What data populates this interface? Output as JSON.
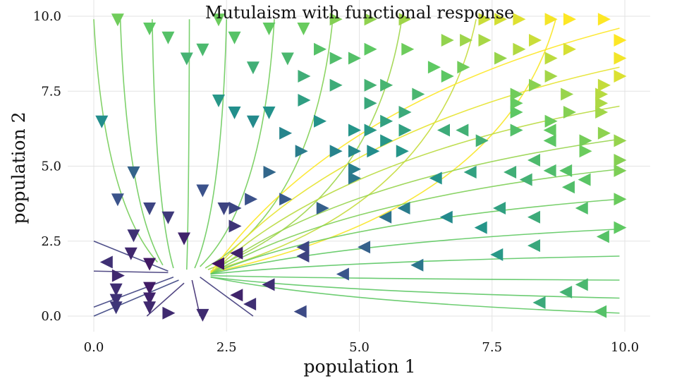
{
  "chart_data": {
    "type": "streamplot",
    "title": "Mutulaism with functional response",
    "xlabel": "population 1",
    "ylabel": "population 2",
    "xlim": [
      0,
      10
    ],
    "ylim": [
      -0.6,
      10.3
    ],
    "x_ticks": [
      0.0,
      2.5,
      5.0,
      7.5,
      10.0
    ],
    "y_ticks": [
      0.0,
      2.5,
      5.0,
      7.5,
      10.0
    ],
    "x_tick_labels": [
      "0.0",
      "2.5",
      "5.0",
      "7.5",
      "10.0"
    ],
    "y_tick_labels": [
      "0.0",
      "2.5",
      "5.0",
      "7.5",
      "10.0"
    ],
    "grid": true,
    "colormap": "viridis",
    "colorscale": [
      "#440154",
      "#3b528b",
      "#21918c",
      "#5ec962",
      "#fde725"
    ],
    "converge_point": [
      1.8,
      1.45
    ],
    "streamlines": [
      {
        "start": [
          0.0,
          9.9
        ],
        "end": [
          1.2,
          1.8
        ]
      },
      {
        "start": [
          0.5,
          9.9
        ],
        "end": [
          1.3,
          1.7
        ]
      },
      {
        "start": [
          1.1,
          9.9
        ],
        "end": [
          1.5,
          1.6
        ]
      },
      {
        "start": [
          1.8,
          9.9
        ],
        "end": [
          1.75,
          1.55
        ]
      },
      {
        "start": [
          2.5,
          9.9
        ],
        "end": [
          1.9,
          1.6
        ]
      },
      {
        "start": [
          3.4,
          9.9
        ],
        "end": [
          2.0,
          1.65
        ]
      },
      {
        "start": [
          4.5,
          9.9
        ],
        "end": [
          2.1,
          1.6
        ]
      },
      {
        "start": [
          5.8,
          9.9
        ],
        "end": [
          2.15,
          1.55
        ]
      },
      {
        "start": [
          7.2,
          9.9
        ],
        "end": [
          2.2,
          1.5
        ]
      },
      {
        "start": [
          8.7,
          9.9
        ],
        "end": [
          2.2,
          1.45
        ]
      },
      {
        "start": [
          9.9,
          9.6
        ],
        "end": [
          2.2,
          1.45
        ]
      },
      {
        "start": [
          9.9,
          8.3
        ],
        "end": [
          2.2,
          1.4
        ]
      },
      {
        "start": [
          9.9,
          7.0
        ],
        "end": [
          2.2,
          1.4
        ]
      },
      {
        "start": [
          9.9,
          5.9
        ],
        "end": [
          2.2,
          1.4
        ]
      },
      {
        "start": [
          9.9,
          4.9
        ],
        "end": [
          2.2,
          1.4
        ]
      },
      {
        "start": [
          9.9,
          3.9
        ],
        "end": [
          2.2,
          1.4
        ]
      },
      {
        "start": [
          9.9,
          2.9
        ],
        "end": [
          2.2,
          1.4
        ]
      },
      {
        "start": [
          9.9,
          2.0
        ],
        "end": [
          2.2,
          1.4
        ]
      },
      {
        "start": [
          9.9,
          1.2
        ],
        "end": [
          2.2,
          1.35
        ]
      },
      {
        "start": [
          9.9,
          0.6
        ],
        "end": [
          2.2,
          1.3
        ]
      },
      {
        "start": [
          9.9,
          0.1
        ],
        "end": [
          2.2,
          1.3
        ]
      },
      {
        "start": [
          0.0,
          2.5
        ],
        "end": [
          1.4,
          1.5
        ]
      },
      {
        "start": [
          0.0,
          1.5
        ],
        "end": [
          1.4,
          1.45
        ]
      },
      {
        "start": [
          0.0,
          0.3
        ],
        "end": [
          1.5,
          1.3
        ]
      },
      {
        "start": [
          0.0,
          0.0
        ],
        "end": [
          1.6,
          1.2
        ]
      },
      {
        "start": [
          1.0,
          0.0
        ],
        "end": [
          1.7,
          1.1
        ]
      },
      {
        "start": [
          2.0,
          0.0
        ],
        "end": [
          1.85,
          1.2
        ]
      },
      {
        "start": [
          3.0,
          0.0
        ],
        "end": [
          2.0,
          1.3
        ]
      }
    ],
    "arrows": [
      {
        "x": 0.25,
        "y": 1.8,
        "dir": "left"
      },
      {
        "x": 0.45,
        "y": 1.35,
        "dir": "right"
      },
      {
        "x": 0.42,
        "y": 0.9,
        "dir": "down"
      },
      {
        "x": 0.42,
        "y": 0.55,
        "dir": "down"
      },
      {
        "x": 0.42,
        "y": 0.3,
        "dir": "down"
      },
      {
        "x": 1.05,
        "y": 0.95,
        "dir": "down"
      },
      {
        "x": 1.05,
        "y": 0.6,
        "dir": "down"
      },
      {
        "x": 1.05,
        "y": 0.3,
        "dir": "down"
      },
      {
        "x": 1.4,
        "y": 0.1,
        "dir": "right"
      },
      {
        "x": 2.05,
        "y": 0.05,
        "dir": "down"
      },
      {
        "x": 0.7,
        "y": 2.1,
        "dir": "down"
      },
      {
        "x": 1.05,
        "y": 1.75,
        "dir": "down"
      },
      {
        "x": 0.75,
        "y": 2.7,
        "dir": "down"
      },
      {
        "x": 0.45,
        "y": 3.9,
        "dir": "down"
      },
      {
        "x": 1.05,
        "y": 3.6,
        "dir": "down"
      },
      {
        "x": 1.4,
        "y": 3.3,
        "dir": "down"
      },
      {
        "x": 1.7,
        "y": 2.6,
        "dir": "down"
      },
      {
        "x": 2.05,
        "y": 4.2,
        "dir": "down"
      },
      {
        "x": 2.45,
        "y": 3.6,
        "dir": "down"
      },
      {
        "x": 0.15,
        "y": 6.5,
        "dir": "down"
      },
      {
        "x": 0.75,
        "y": 4.8,
        "dir": "down"
      },
      {
        "x": 2.35,
        "y": 1.75,
        "dir": "left"
      },
      {
        "x": 2.7,
        "y": 2.1,
        "dir": "left"
      },
      {
        "x": 2.7,
        "y": 0.7,
        "dir": "left"
      },
      {
        "x": 2.95,
        "y": 0.4,
        "dir": "left"
      },
      {
        "x": 3.3,
        "y": 1.05,
        "dir": "left"
      },
      {
        "x": 3.9,
        "y": 0.15,
        "dir": "left"
      },
      {
        "x": 3.95,
        "y": 2.3,
        "dir": "left"
      },
      {
        "x": 3.95,
        "y": 2.0,
        "dir": "left"
      },
      {
        "x": 4.7,
        "y": 1.4,
        "dir": "left"
      },
      {
        "x": 5.1,
        "y": 2.3,
        "dir": "left"
      },
      {
        "x": 6.1,
        "y": 1.7,
        "dir": "left"
      },
      {
        "x": 7.6,
        "y": 2.05,
        "dir": "left"
      },
      {
        "x": 8.3,
        "y": 2.35,
        "dir": "left"
      },
      {
        "x": 8.9,
        "y": 0.8,
        "dir": "left"
      },
      {
        "x": 9.2,
        "y": 1.05,
        "dir": "left"
      },
      {
        "x": 8.4,
        "y": 0.45,
        "dir": "left"
      },
      {
        "x": 9.55,
        "y": 0.15,
        "dir": "left"
      },
      {
        "x": 2.65,
        "y": 3.0,
        "dir": "right"
      },
      {
        "x": 2.65,
        "y": 3.6,
        "dir": "right"
      },
      {
        "x": 2.95,
        "y": 3.9,
        "dir": "right"
      },
      {
        "x": 3.6,
        "y": 3.9,
        "dir": "right"
      },
      {
        "x": 4.3,
        "y": 3.6,
        "dir": "right"
      },
      {
        "x": 5.5,
        "y": 3.3,
        "dir": "left"
      },
      {
        "x": 5.85,
        "y": 3.6,
        "dir": "left"
      },
      {
        "x": 6.65,
        "y": 3.3,
        "dir": "left"
      },
      {
        "x": 7.3,
        "y": 2.95,
        "dir": "left"
      },
      {
        "x": 7.65,
        "y": 3.6,
        "dir": "left"
      },
      {
        "x": 8.3,
        "y": 3.3,
        "dir": "left"
      },
      {
        "x": 9.2,
        "y": 3.6,
        "dir": "left"
      },
      {
        "x": 9.6,
        "y": 2.65,
        "dir": "left"
      },
      {
        "x": 9.9,
        "y": 2.95,
        "dir": "right"
      },
      {
        "x": 9.9,
        "y": 3.9,
        "dir": "right"
      },
      {
        "x": 3.3,
        "y": 4.8,
        "dir": "right"
      },
      {
        "x": 3.9,
        "y": 5.5,
        "dir": "right"
      },
      {
        "x": 4.9,
        "y": 4.6,
        "dir": "right"
      },
      {
        "x": 4.9,
        "y": 4.9,
        "dir": "right"
      },
      {
        "x": 4.55,
        "y": 5.5,
        "dir": "right"
      },
      {
        "x": 4.9,
        "y": 5.5,
        "dir": "right"
      },
      {
        "x": 5.25,
        "y": 5.5,
        "dir": "right"
      },
      {
        "x": 5.8,
        "y": 5.5,
        "dir": "right"
      },
      {
        "x": 5.5,
        "y": 5.85,
        "dir": "right"
      },
      {
        "x": 4.9,
        "y": 6.2,
        "dir": "right"
      },
      {
        "x": 5.2,
        "y": 6.2,
        "dir": "right"
      },
      {
        "x": 5.5,
        "y": 6.5,
        "dir": "right"
      },
      {
        "x": 5.85,
        "y": 6.2,
        "dir": "right"
      },
      {
        "x": 5.85,
        "y": 6.8,
        "dir": "right"
      },
      {
        "x": 6.45,
        "y": 4.6,
        "dir": "left"
      },
      {
        "x": 7.1,
        "y": 4.8,
        "dir": "left"
      },
      {
        "x": 7.3,
        "y": 5.85,
        "dir": "right"
      },
      {
        "x": 6.6,
        "y": 6.2,
        "dir": "left"
      },
      {
        "x": 6.95,
        "y": 6.2,
        "dir": "left"
      },
      {
        "x": 7.85,
        "y": 4.8,
        "dir": "left"
      },
      {
        "x": 8.15,
        "y": 4.55,
        "dir": "left"
      },
      {
        "x": 8.6,
        "y": 4.85,
        "dir": "left"
      },
      {
        "x": 8.95,
        "y": 4.3,
        "dir": "left"
      },
      {
        "x": 9.25,
        "y": 4.55,
        "dir": "left"
      },
      {
        "x": 8.3,
        "y": 5.2,
        "dir": "left"
      },
      {
        "x": 8.9,
        "y": 4.85,
        "dir": "left"
      },
      {
        "x": 9.25,
        "y": 5.5,
        "dir": "right"
      },
      {
        "x": 9.25,
        "y": 5.85,
        "dir": "right"
      },
      {
        "x": 9.9,
        "y": 4.85,
        "dir": "right"
      },
      {
        "x": 9.9,
        "y": 5.2,
        "dir": "right"
      },
      {
        "x": 9.9,
        "y": 5.85,
        "dir": "right"
      },
      {
        "x": 9.6,
        "y": 6.1,
        "dir": "right"
      },
      {
        "x": 8.6,
        "y": 5.85,
        "dir": "left"
      },
      {
        "x": 8.6,
        "y": 6.2,
        "dir": "left"
      },
      {
        "x": 8.6,
        "y": 6.5,
        "dir": "right"
      },
      {
        "x": 7.95,
        "y": 6.2,
        "dir": "right"
      },
      {
        "x": 7.95,
        "y": 6.8,
        "dir": "right"
      },
      {
        "x": 7.95,
        "y": 7.1,
        "dir": "right"
      },
      {
        "x": 7.95,
        "y": 7.4,
        "dir": "right"
      },
      {
        "x": 8.95,
        "y": 6.8,
        "dir": "right"
      },
      {
        "x": 8.9,
        "y": 7.4,
        "dir": "right"
      },
      {
        "x": 9.55,
        "y": 6.8,
        "dir": "right"
      },
      {
        "x": 9.55,
        "y": 7.1,
        "dir": "right"
      },
      {
        "x": 9.55,
        "y": 7.4,
        "dir": "right"
      },
      {
        "x": 9.6,
        "y": 7.7,
        "dir": "right"
      },
      {
        "x": 9.9,
        "y": 8.0,
        "dir": "right"
      },
      {
        "x": 8.3,
        "y": 7.7,
        "dir": "right"
      },
      {
        "x": 8.6,
        "y": 8.0,
        "dir": "right"
      },
      {
        "x": 2.35,
        "y": 7.2,
        "dir": "down"
      },
      {
        "x": 2.65,
        "y": 6.8,
        "dir": "down"
      },
      {
        "x": 3.0,
        "y": 6.5,
        "dir": "down"
      },
      {
        "x": 3.3,
        "y": 6.8,
        "dir": "down"
      },
      {
        "x": 3.6,
        "y": 6.1,
        "dir": "right"
      },
      {
        "x": 3.95,
        "y": 7.2,
        "dir": "right"
      },
      {
        "x": 4.25,
        "y": 6.5,
        "dir": "right"
      },
      {
        "x": 3.0,
        "y": 8.3,
        "dir": "down"
      },
      {
        "x": 3.95,
        "y": 8.0,
        "dir": "right"
      },
      {
        "x": 4.55,
        "y": 7.7,
        "dir": "right"
      },
      {
        "x": 5.2,
        "y": 7.7,
        "dir": "right"
      },
      {
        "x": 5.5,
        "y": 7.7,
        "dir": "right"
      },
      {
        "x": 5.2,
        "y": 7.1,
        "dir": "right"
      },
      {
        "x": 6.1,
        "y": 7.4,
        "dir": "right"
      },
      {
        "x": 6.65,
        "y": 8.0,
        "dir": "right"
      },
      {
        "x": 6.95,
        "y": 8.3,
        "dir": "right"
      },
      {
        "x": 6.4,
        "y": 8.3,
        "dir": "right"
      },
      {
        "x": 3.65,
        "y": 8.6,
        "dir": "down"
      },
      {
        "x": 4.25,
        "y": 8.9,
        "dir": "right"
      },
      {
        "x": 4.9,
        "y": 8.6,
        "dir": "right"
      },
      {
        "x": 4.55,
        "y": 8.6,
        "dir": "right"
      },
      {
        "x": 5.2,
        "y": 8.9,
        "dir": "right"
      },
      {
        "x": 5.9,
        "y": 8.9,
        "dir": "right"
      },
      {
        "x": 6.65,
        "y": 9.2,
        "dir": "right"
      },
      {
        "x": 7.0,
        "y": 9.2,
        "dir": "right"
      },
      {
        "x": 7.35,
        "y": 9.2,
        "dir": "right"
      },
      {
        "x": 7.65,
        "y": 8.6,
        "dir": "right"
      },
      {
        "x": 8.0,
        "y": 8.9,
        "dir": "right"
      },
      {
        "x": 8.3,
        "y": 9.2,
        "dir": "right"
      },
      {
        "x": 8.6,
        "y": 8.6,
        "dir": "right"
      },
      {
        "x": 8.95,
        "y": 8.9,
        "dir": "right"
      },
      {
        "x": 9.9,
        "y": 8.6,
        "dir": "right"
      },
      {
        "x": 9.9,
        "y": 9.2,
        "dir": "right"
      },
      {
        "x": 0.45,
        "y": 9.9,
        "dir": "down"
      },
      {
        "x": 1.05,
        "y": 9.6,
        "dir": "down"
      },
      {
        "x": 1.4,
        "y": 9.3,
        "dir": "down"
      },
      {
        "x": 1.75,
        "y": 8.6,
        "dir": "down"
      },
      {
        "x": 2.05,
        "y": 8.9,
        "dir": "down"
      },
      {
        "x": 2.35,
        "y": 9.9,
        "dir": "down"
      },
      {
        "x": 2.65,
        "y": 9.3,
        "dir": "down"
      },
      {
        "x": 3.3,
        "y": 9.6,
        "dir": "down"
      },
      {
        "x": 3.95,
        "y": 9.6,
        "dir": "down"
      },
      {
        "x": 4.55,
        "y": 9.9,
        "dir": "right"
      },
      {
        "x": 5.2,
        "y": 9.9,
        "dir": "right"
      },
      {
        "x": 5.85,
        "y": 9.9,
        "dir": "right"
      },
      {
        "x": 7.35,
        "y": 9.9,
        "dir": "right"
      },
      {
        "x": 7.65,
        "y": 9.9,
        "dir": "right"
      },
      {
        "x": 8.0,
        "y": 9.9,
        "dir": "right"
      },
      {
        "x": 8.6,
        "y": 9.9,
        "dir": "right"
      },
      {
        "x": 8.95,
        "y": 9.9,
        "dir": "right"
      },
      {
        "x": 9.6,
        "y": 9.9,
        "dir": "right"
      }
    ]
  }
}
